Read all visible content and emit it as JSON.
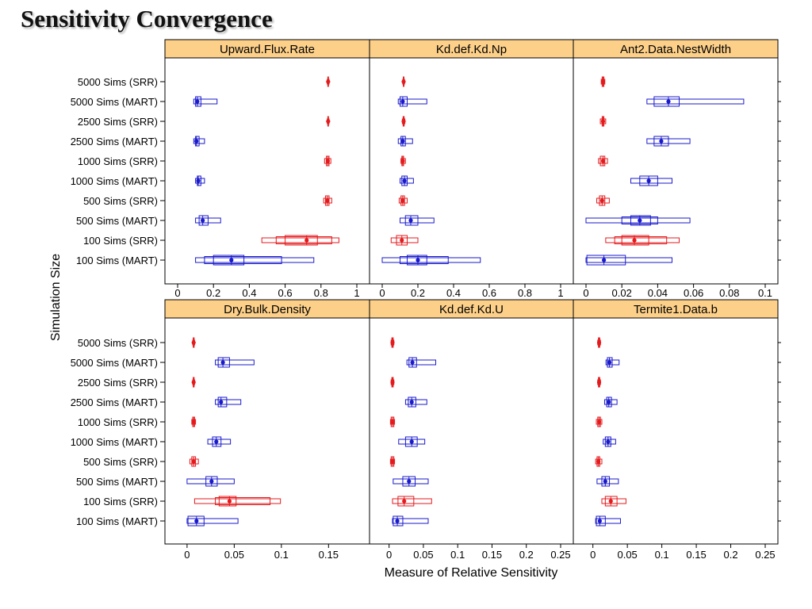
{
  "title": "Sensitivity Convergence",
  "chart_data": {
    "type": "boxplot",
    "title": "Sensitivity Convergence",
    "xlabel": "Measure of Relative Sensitivity",
    "ylabel": "Simulation Size",
    "categories": [
      "5000 Sims (SRR)",
      "5000 Sims (MART)",
      "2500 Sims (SRR)",
      "2500 Sims (MART)",
      "1000 Sims (SRR)",
      "1000 Sims (MART)",
      "500 Sims (SRR)",
      "500 Sims (MART)",
      "100 Sims (SRR)",
      "100 Sims (MART)"
    ],
    "colors": {
      "SRR": "#e41a1c",
      "MART": "#1a1acc",
      "strip": "#fdd08a",
      "frame": "#000000"
    },
    "stats_order": [
      "min",
      "q1",
      "q1_outer",
      "median",
      "q3_outer",
      "q3",
      "max"
    ],
    "panels": [
      {
        "name": "Upward.Flux.Rate",
        "xlim": [
          0,
          1
        ],
        "ticks": [
          0,
          0.2,
          0.4,
          0.6,
          0.8,
          1
        ],
        "tick_labels": [
          "0",
          "0.2",
          "0.4",
          "0.6",
          "0.8",
          "1"
        ],
        "groups": [
          {
            "category": "5000 Sims (SRR)",
            "method": "SRR",
            "min": 0.835,
            "q1": 0.838,
            "median": 0.84,
            "q3": 0.842,
            "max": 0.845
          },
          {
            "category": "5000 Sims (MART)",
            "method": "MART",
            "min": 0.09,
            "q1": 0.1,
            "median": 0.11,
            "q3": 0.13,
            "max": 0.22
          },
          {
            "category": "2500 Sims (SRR)",
            "method": "SRR",
            "min": 0.835,
            "q1": 0.838,
            "median": 0.84,
            "q3": 0.842,
            "max": 0.845
          },
          {
            "category": "2500 Sims (MART)",
            "method": "MART",
            "min": 0.09,
            "q1": 0.1,
            "median": 0.105,
            "q3": 0.12,
            "max": 0.15
          },
          {
            "category": "1000 Sims (SRR)",
            "method": "SRR",
            "min": 0.82,
            "q1": 0.83,
            "median": 0.838,
            "q3": 0.845,
            "max": 0.855
          },
          {
            "category": "1000 Sims (MART)",
            "method": "MART",
            "min": 0.1,
            "q1": 0.11,
            "median": 0.115,
            "q3": 0.13,
            "max": 0.15
          },
          {
            "category": "500 Sims (SRR)",
            "method": "SRR",
            "min": 0.815,
            "q1": 0.825,
            "median": 0.835,
            "q3": 0.845,
            "max": 0.86
          },
          {
            "category": "500 Sims (MART)",
            "method": "MART",
            "min": 0.1,
            "q1": 0.12,
            "median": 0.14,
            "q3": 0.17,
            "max": 0.24
          },
          {
            "category": "100 Sims (SRR)",
            "method": "SRR",
            "min": 0.47,
            "q1": 0.55,
            "q1_outer": 0.6,
            "median": 0.72,
            "q3_outer": 0.78,
            "q3": 0.86,
            "max": 0.9
          },
          {
            "category": "100 Sims (MART)",
            "method": "MART",
            "min": 0.1,
            "q1": 0.15,
            "q1_outer": 0.2,
            "median": 0.3,
            "q3_outer": 0.37,
            "q3": 0.58,
            "max": 0.76
          }
        ]
      },
      {
        "name": "Kd.def.Kd.Np",
        "xlim": [
          0,
          1
        ],
        "ticks": [
          0,
          0.2,
          0.4,
          0.6,
          0.8,
          1
        ],
        "tick_labels": [
          "0",
          "0.2",
          "0.4",
          "0.6",
          "0.8",
          "1"
        ],
        "groups": [
          {
            "category": "5000 Sims (SRR)",
            "method": "SRR",
            "min": 0.115,
            "q1": 0.118,
            "median": 0.12,
            "q3": 0.122,
            "max": 0.125
          },
          {
            "category": "5000 Sims (MART)",
            "method": "MART",
            "min": 0.09,
            "q1": 0.1,
            "median": 0.115,
            "q3": 0.14,
            "max": 0.25
          },
          {
            "category": "2500 Sims (SRR)",
            "method": "SRR",
            "min": 0.113,
            "q1": 0.117,
            "median": 0.12,
            "q3": 0.123,
            "max": 0.127
          },
          {
            "category": "2500 Sims (MART)",
            "method": "MART",
            "min": 0.09,
            "q1": 0.105,
            "median": 0.115,
            "q3": 0.13,
            "max": 0.17
          },
          {
            "category": "1000 Sims (SRR)",
            "method": "SRR",
            "min": 0.105,
            "q1": 0.11,
            "median": 0.115,
            "q3": 0.12,
            "max": 0.13
          },
          {
            "category": "1000 Sims (MART)",
            "method": "MART",
            "min": 0.1,
            "q1": 0.11,
            "median": 0.125,
            "q3": 0.14,
            "max": 0.175
          },
          {
            "category": "500 Sims (SRR)",
            "method": "SRR",
            "min": 0.095,
            "q1": 0.105,
            "median": 0.115,
            "q3": 0.125,
            "max": 0.14
          },
          {
            "category": "500 Sims (MART)",
            "method": "MART",
            "min": 0.1,
            "q1": 0.13,
            "median": 0.16,
            "q3": 0.2,
            "max": 0.29
          },
          {
            "category": "100 Sims (SRR)",
            "method": "SRR",
            "min": 0.05,
            "q1": 0.08,
            "median": 0.11,
            "q3": 0.14,
            "max": 0.2
          },
          {
            "category": "100 Sims (MART)",
            "method": "MART",
            "min": 0,
            "q1": 0.1,
            "q1_outer": 0.14,
            "median": 0.2,
            "q3_outer": 0.25,
            "q3": 0.37,
            "max": 0.55
          }
        ]
      },
      {
        "name": "Ant2.Data.NestWidth",
        "xlim": [
          0,
          0.1
        ],
        "ticks": [
          0,
          0.02,
          0.04,
          0.06,
          0.08,
          0.1
        ],
        "tick_labels": [
          "0",
          "0.02",
          "0.04",
          "0.06",
          "0.08",
          "0.1"
        ],
        "groups": [
          {
            "category": "5000 Sims (SRR)",
            "method": "SRR",
            "min": 0.0085,
            "q1": 0.009,
            "median": 0.0095,
            "q3": 0.01,
            "max": 0.0105
          },
          {
            "category": "5000 Sims (MART)",
            "method": "MART",
            "min": 0.034,
            "q1": 0.038,
            "median": 0.046,
            "q3": 0.052,
            "max": 0.088
          },
          {
            "category": "2500 Sims (SRR)",
            "method": "SRR",
            "min": 0.008,
            "q1": 0.009,
            "median": 0.0095,
            "q3": 0.01,
            "max": 0.011
          },
          {
            "category": "2500 Sims (MART)",
            "method": "MART",
            "min": 0.034,
            "q1": 0.038,
            "median": 0.042,
            "q3": 0.046,
            "max": 0.058
          },
          {
            "category": "1000 Sims (SRR)",
            "method": "SRR",
            "min": 0.007,
            "q1": 0.008,
            "median": 0.0095,
            "q3": 0.0105,
            "max": 0.012
          },
          {
            "category": "1000 Sims (MART)",
            "method": "MART",
            "min": 0.025,
            "q1": 0.03,
            "median": 0.035,
            "q3": 0.04,
            "max": 0.048
          },
          {
            "category": "500 Sims (SRR)",
            "method": "SRR",
            "min": 0.006,
            "q1": 0.0075,
            "median": 0.009,
            "q3": 0.0105,
            "max": 0.013
          },
          {
            "category": "500 Sims (MART)",
            "method": "MART",
            "min": 0,
            "q1": 0.02,
            "q1_outer": 0.025,
            "median": 0.03,
            "q3_outer": 0.036,
            "q3": 0.04,
            "max": 0.058
          },
          {
            "category": "100 Sims (SRR)",
            "method": "SRR",
            "min": 0.011,
            "q1": 0.016,
            "q1_outer": 0.02,
            "median": 0.027,
            "q3_outer": 0.035,
            "q3": 0.045,
            "max": 0.052
          },
          {
            "category": "100 Sims (MART)",
            "method": "MART",
            "min": 0,
            "q1": 0.0005,
            "median": 0.01,
            "q3": 0.022,
            "max": 0.048
          }
        ]
      },
      {
        "name": "Dry.Bulk.Density",
        "xlim": [
          -0.01,
          0.18
        ],
        "ticks": [
          0,
          0.05,
          0.1,
          0.15
        ],
        "tick_labels": [
          "0",
          "0.05",
          "0.1",
          "0.15"
        ],
        "groups": [
          {
            "category": "5000 Sims (SRR)",
            "method": "SRR",
            "min": 0.006,
            "q1": 0.0065,
            "median": 0.007,
            "q3": 0.0075,
            "max": 0.008
          },
          {
            "category": "5000 Sims (MART)",
            "method": "MART",
            "min": 0.03,
            "q1": 0.033,
            "median": 0.038,
            "q3": 0.045,
            "max": 0.071
          },
          {
            "category": "2500 Sims (SRR)",
            "method": "SRR",
            "min": 0.006,
            "q1": 0.0065,
            "median": 0.007,
            "q3": 0.0075,
            "max": 0.008
          },
          {
            "category": "2500 Sims (MART)",
            "method": "MART",
            "min": 0.03,
            "q1": 0.033,
            "median": 0.036,
            "q3": 0.042,
            "max": 0.057
          },
          {
            "category": "1000 Sims (SRR)",
            "method": "SRR",
            "min": 0.005,
            "q1": 0.006,
            "median": 0.007,
            "q3": 0.008,
            "max": 0.009
          },
          {
            "category": "1000 Sims (MART)",
            "method": "MART",
            "min": 0.022,
            "q1": 0.027,
            "median": 0.031,
            "q3": 0.036,
            "max": 0.046
          },
          {
            "category": "500 Sims (SRR)",
            "method": "SRR",
            "min": 0.003,
            "q1": 0.005,
            "median": 0.007,
            "q3": 0.009,
            "max": 0.012
          },
          {
            "category": "500 Sims (MART)",
            "method": "MART",
            "min": 0,
            "q1": 0.02,
            "median": 0.026,
            "q3": 0.032,
            "max": 0.05
          },
          {
            "category": "100 Sims (SRR)",
            "method": "SRR",
            "min": 0.008,
            "q1": 0.03,
            "q1_outer": 0.034,
            "median": 0.045,
            "q3_outer": 0.052,
            "q3": 0.088,
            "max": 0.099
          },
          {
            "category": "100 Sims (MART)",
            "method": "MART",
            "min": 0,
            "q1": 0.001,
            "median": 0.01,
            "q3": 0.018,
            "max": 0.054
          }
        ]
      },
      {
        "name": "Kd.def.Kd.U",
        "xlim": [
          -0.01,
          0.25
        ],
        "ticks": [
          0,
          0.05,
          0.1,
          0.15,
          0.2,
          0.25
        ],
        "tick_labels": [
          "0",
          "0.05",
          "0.1",
          "0.15",
          "0.2",
          "0.25"
        ],
        "groups": [
          {
            "category": "5000 Sims (SRR)",
            "method": "SRR",
            "min": 0.003,
            "q1": 0.004,
            "median": 0.005,
            "q3": 0.006,
            "max": 0.007
          },
          {
            "category": "5000 Sims (MART)",
            "method": "MART",
            "min": 0.026,
            "q1": 0.029,
            "median": 0.034,
            "q3": 0.04,
            "max": 0.068
          },
          {
            "category": "2500 Sims (SRR)",
            "method": "SRR",
            "min": 0.003,
            "q1": 0.004,
            "median": 0.005,
            "q3": 0.006,
            "max": 0.007
          },
          {
            "category": "2500 Sims (MART)",
            "method": "MART",
            "min": 0.024,
            "q1": 0.028,
            "median": 0.033,
            "q3": 0.039,
            "max": 0.055
          },
          {
            "category": "1000 Sims (SRR)",
            "method": "SRR",
            "min": 0.002,
            "q1": 0.003,
            "median": 0.005,
            "q3": 0.007,
            "max": 0.008
          },
          {
            "category": "1000 Sims (MART)",
            "method": "MART",
            "min": 0.014,
            "q1": 0.024,
            "median": 0.033,
            "q3": 0.041,
            "max": 0.052
          },
          {
            "category": "500 Sims (SRR)",
            "method": "SRR",
            "min": 0.002,
            "q1": 0.003,
            "median": 0.005,
            "q3": 0.007,
            "max": 0.008
          },
          {
            "category": "500 Sims (MART)",
            "method": "MART",
            "min": 0.006,
            "q1": 0.02,
            "median": 0.029,
            "q3": 0.038,
            "max": 0.057
          },
          {
            "category": "100 Sims (SRR)",
            "method": "SRR",
            "min": 0.005,
            "q1": 0.013,
            "median": 0.022,
            "q3": 0.036,
            "max": 0.062
          },
          {
            "category": "100 Sims (MART)",
            "method": "MART",
            "min": 0.005,
            "q1": 0.006,
            "median": 0.012,
            "q3": 0.02,
            "max": 0.057
          }
        ]
      },
      {
        "name": "Termite1.Data.b",
        "xlim": [
          -0.01,
          0.25
        ],
        "ticks": [
          0,
          0.05,
          0.1,
          0.15,
          0.2,
          0.25
        ],
        "tick_labels": [
          "0",
          "0.05",
          "0.1",
          "0.15",
          "0.2",
          "0.25"
        ],
        "groups": [
          {
            "category": "5000 Sims (SRR)",
            "method": "SRR",
            "min": 0.007,
            "q1": 0.008,
            "median": 0.009,
            "q3": 0.01,
            "max": 0.011
          },
          {
            "category": "5000 Sims (MART)",
            "method": "MART",
            "min": 0.019,
            "q1": 0.021,
            "median": 0.024,
            "q3": 0.028,
            "max": 0.038
          },
          {
            "category": "2500 Sims (SRR)",
            "method": "SRR",
            "min": 0.007,
            "q1": 0.008,
            "median": 0.009,
            "q3": 0.01,
            "max": 0.011
          },
          {
            "category": "2500 Sims (MART)",
            "method": "MART",
            "min": 0.017,
            "q1": 0.02,
            "median": 0.023,
            "q3": 0.027,
            "max": 0.035
          },
          {
            "category": "1000 Sims (SRR)",
            "method": "SRR",
            "min": 0.005,
            "q1": 0.007,
            "median": 0.009,
            "q3": 0.011,
            "max": 0.013
          },
          {
            "category": "1000 Sims (MART)",
            "method": "MART",
            "min": 0.015,
            "q1": 0.018,
            "median": 0.022,
            "q3": 0.026,
            "max": 0.033
          },
          {
            "category": "500 Sims (SRR)",
            "method": "SRR",
            "min": 0.004,
            "q1": 0.006,
            "median": 0.008,
            "q3": 0.01,
            "max": 0.013
          },
          {
            "category": "500 Sims (MART)",
            "method": "MART",
            "min": 0.006,
            "q1": 0.013,
            "median": 0.018,
            "q3": 0.024,
            "max": 0.037
          },
          {
            "category": "100 Sims (SRR)",
            "method": "SRR",
            "min": 0.013,
            "q1": 0.018,
            "median": 0.026,
            "q3": 0.035,
            "max": 0.048
          },
          {
            "category": "100 Sims (MART)",
            "method": "MART",
            "min": 0.004,
            "q1": 0.005,
            "median": 0.01,
            "q3": 0.018,
            "max": 0.04
          }
        ]
      }
    ]
  }
}
